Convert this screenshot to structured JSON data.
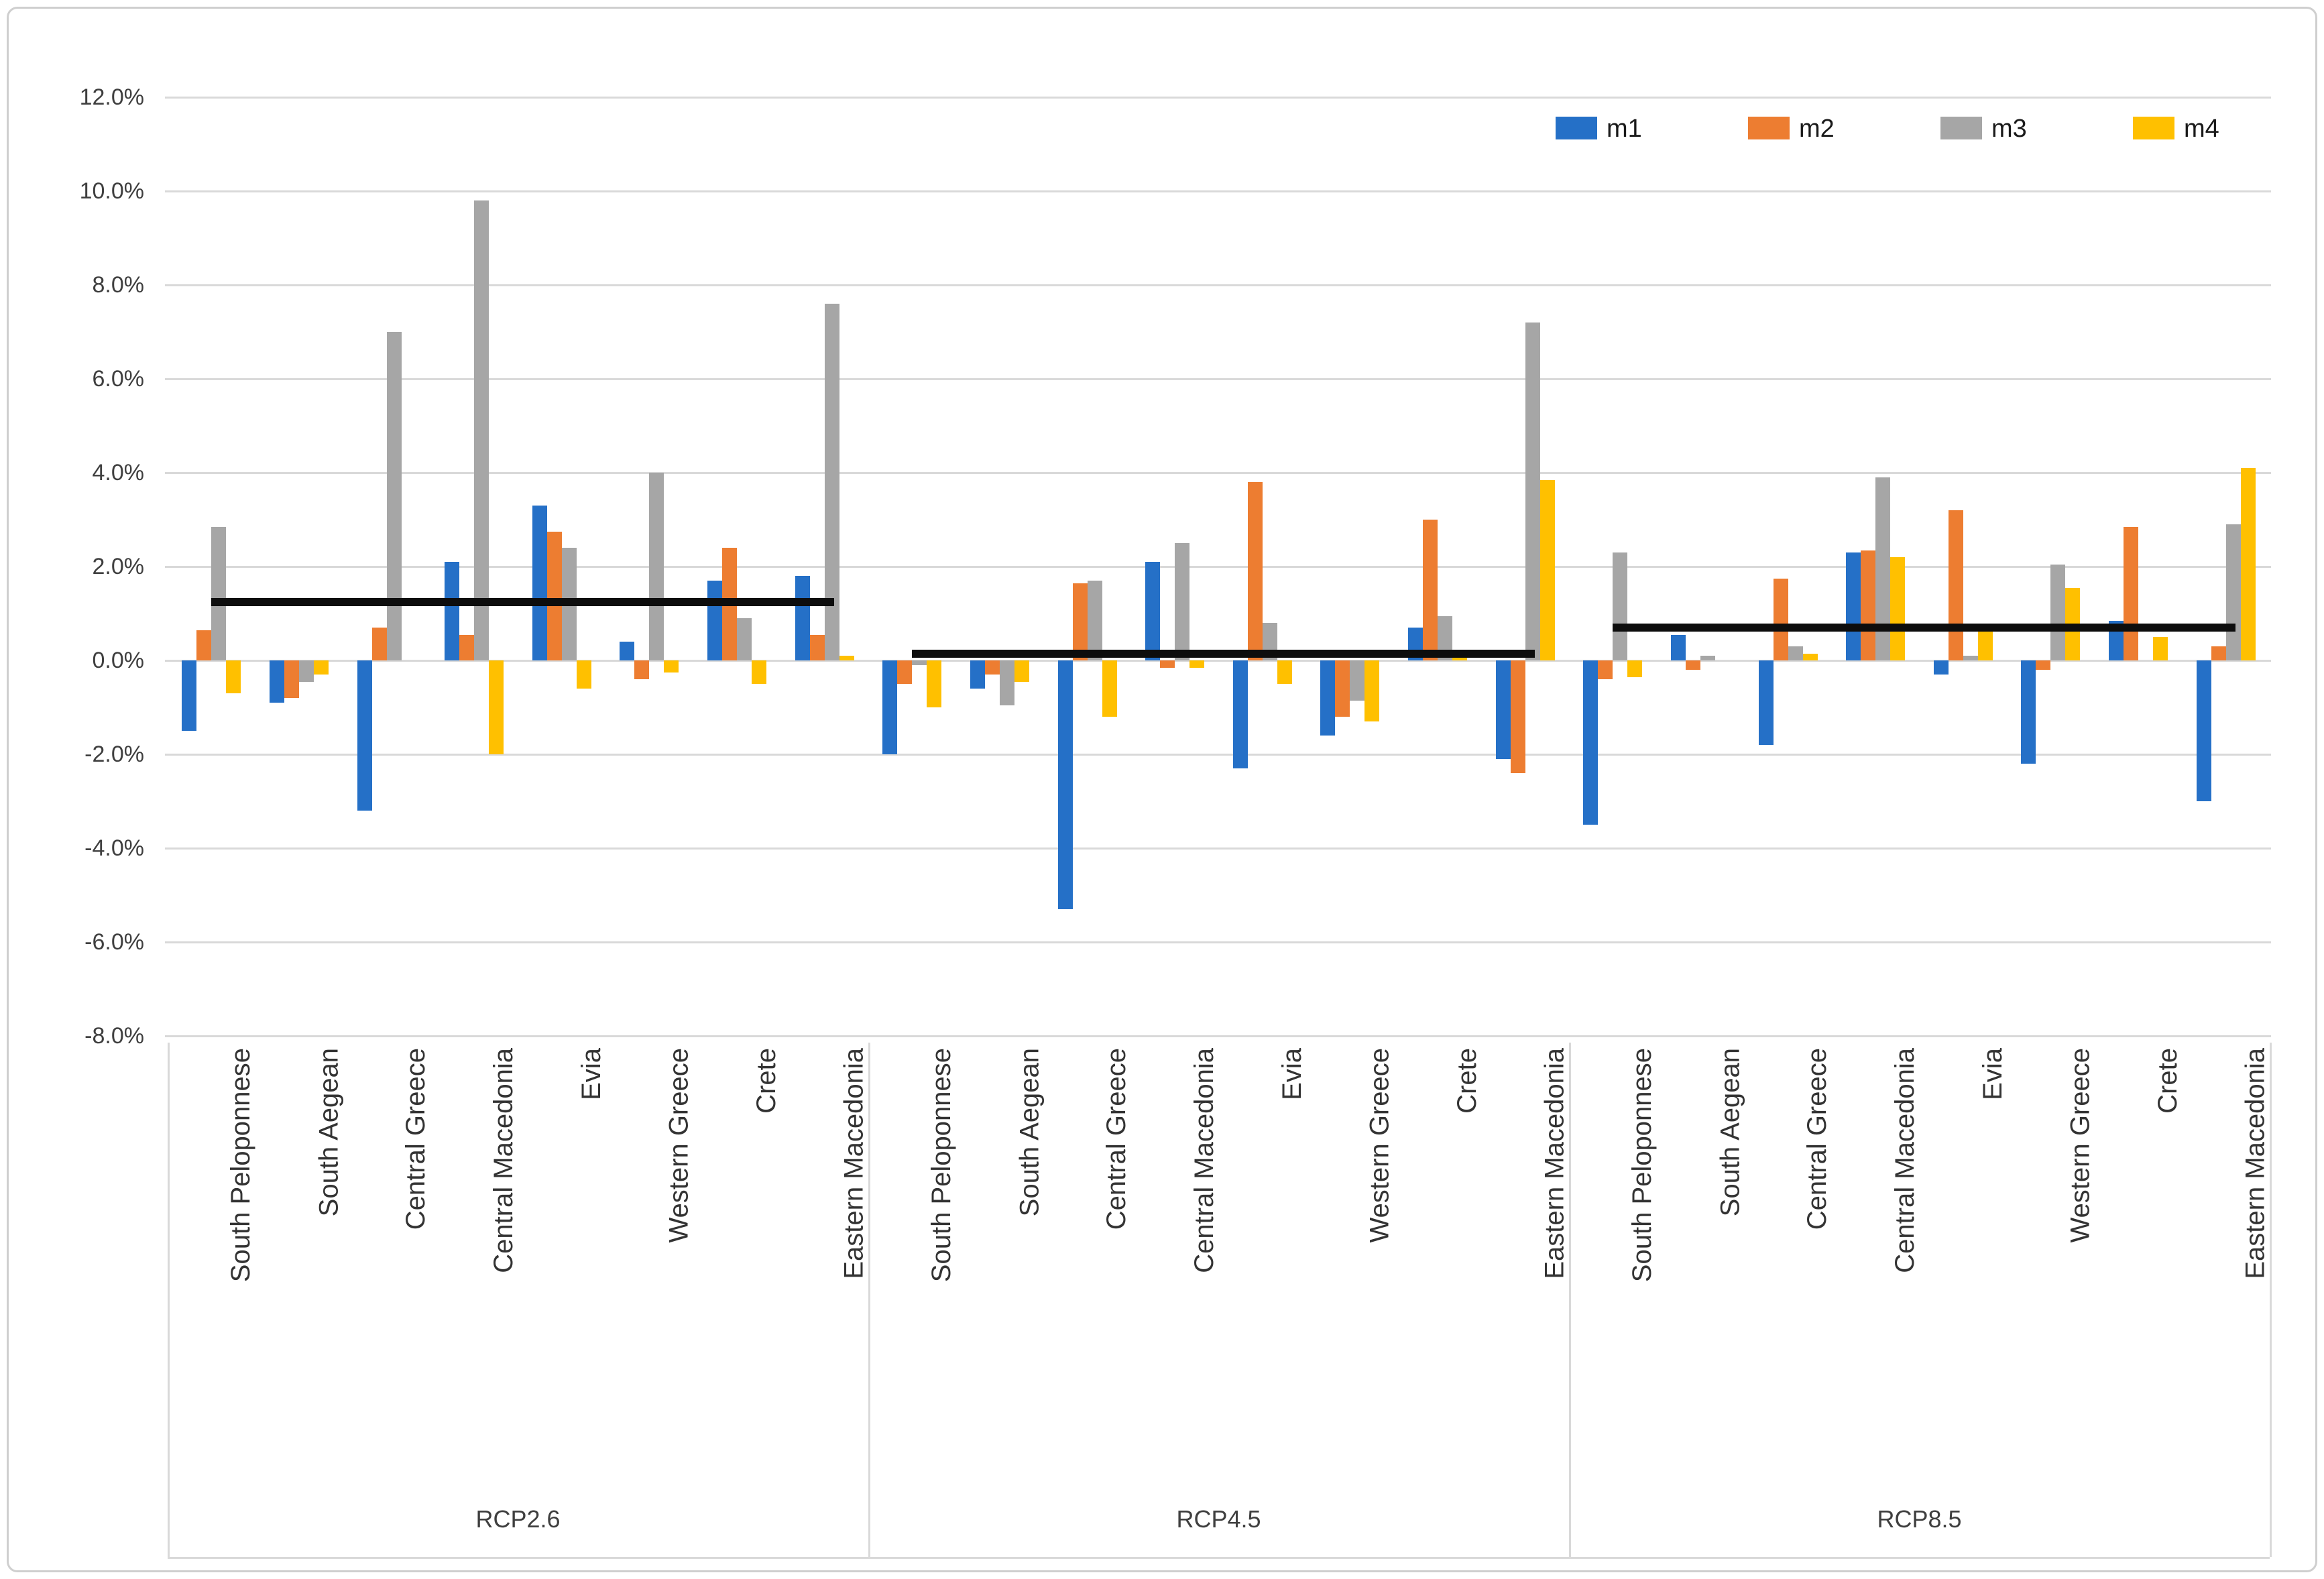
{
  "figure": {
    "background": "#ffffff",
    "border_color": "#cfcfcf"
  },
  "legend": {
    "position": "top-right",
    "items": [
      {
        "label": "m1",
        "color": "#2570C7"
      },
      {
        "label": "m2",
        "color": "#ED7D31"
      },
      {
        "label": "m3",
        "color": "#A6A6A6"
      },
      {
        "label": "m4",
        "color": "#FFC000"
      }
    ]
  },
  "chart_data": {
    "type": "bar",
    "title": "",
    "xlabel": "",
    "ylabel": "",
    "units": "%",
    "ylim": [
      -8,
      12
    ],
    "grid": "horizontal",
    "y_tick_values": [
      12,
      10,
      8,
      6,
      4,
      2,
      0,
      -2,
      -4,
      -6,
      -8
    ],
    "y_tick_labels": [
      "12.0%",
      "10.0%",
      "8.0%",
      "6.0%",
      "4.0%",
      "2.0%",
      "0.0%",
      "-2.0%",
      "-4.0%",
      "-6.0%",
      "-8.0%"
    ],
    "categories": [
      "South Peloponnese",
      "South Aegean",
      "Central Greece",
      "Central Macedonia",
      "Evia",
      "Western Greece",
      "Crete",
      "Eastern Macedonia"
    ],
    "series_names": [
      "m1",
      "m2",
      "m3",
      "m4"
    ],
    "series_colors": [
      "#2570C7",
      "#ED7D31",
      "#A6A6A6",
      "#FFC000"
    ],
    "black_line_meaning": "group average line",
    "groups": [
      {
        "label": "RCP2.6",
        "average_line": 1.25,
        "series": [
          {
            "name": "m1",
            "values": [
              -1.5,
              -0.9,
              -3.2,
              2.1,
              3.3,
              0.4,
              1.7,
              1.8
            ]
          },
          {
            "name": "m2",
            "values": [
              0.65,
              -0.8,
              0.7,
              0.55,
              2.75,
              -0.4,
              2.4,
              0.55
            ]
          },
          {
            "name": "m3",
            "values": [
              2.85,
              -0.45,
              7.0,
              9.8,
              2.4,
              4.0,
              0.9,
              7.6
            ]
          },
          {
            "name": "m4",
            "values": [
              -0.7,
              -0.3,
              0.0,
              -2.0,
              -0.6,
              -0.25,
              -0.5,
              0.1
            ]
          }
        ]
      },
      {
        "label": "RCP4.5",
        "average_line": 0.15,
        "series": [
          {
            "name": "m1",
            "values": [
              -2.0,
              -0.6,
              -5.3,
              2.1,
              -2.3,
              -1.6,
              0.7,
              -2.1
            ]
          },
          {
            "name": "m2",
            "values": [
              -0.5,
              -0.3,
              1.65,
              -0.15,
              3.8,
              -1.2,
              3.0,
              -2.4
            ]
          },
          {
            "name": "m3",
            "values": [
              -0.1,
              -0.95,
              1.7,
              2.5,
              0.8,
              -0.85,
              0.95,
              7.2
            ]
          },
          {
            "name": "m4",
            "values": [
              -1.0,
              -0.45,
              -1.2,
              -0.15,
              -0.5,
              -1.3,
              0.15,
              3.85
            ]
          }
        ]
      },
      {
        "label": "RCP8.5",
        "average_line": 0.7,
        "series": [
          {
            "name": "m1",
            "values": [
              -3.5,
              0.55,
              -1.8,
              2.3,
              -0.3,
              -2.2,
              0.85,
              -3.0
            ]
          },
          {
            "name": "m2",
            "values": [
              -0.4,
              -0.2,
              1.75,
              2.35,
              3.2,
              -0.2,
              2.85,
              0.3
            ]
          },
          {
            "name": "m3",
            "values": [
              2.3,
              0.1,
              0.3,
              3.9,
              0.1,
              2.05,
              0.0,
              2.9
            ]
          },
          {
            "name": "m4",
            "values": [
              -0.35,
              0.0,
              0.15,
              2.2,
              0.65,
              1.55,
              0.5,
              4.1
            ]
          }
        ]
      }
    ]
  }
}
